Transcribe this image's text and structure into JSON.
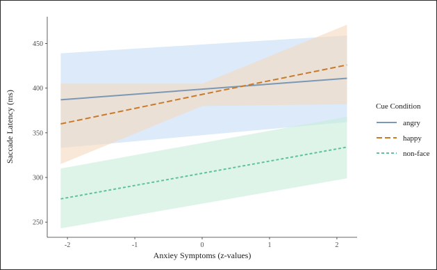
{
  "chart_data": {
    "type": "line",
    "xlabel": "Anxiey Symptoms (z-values)",
    "ylabel": "Saccade Latency (ms)",
    "xlim": [
      -2.3,
      2.3
    ],
    "ylim": [
      233,
      480
    ],
    "x_ticks": [
      -2,
      -1,
      0,
      1,
      2
    ],
    "y_ticks": [
      250,
      300,
      350,
      400,
      450
    ],
    "grid": false,
    "legend": {
      "title": "Cue Condition",
      "placement": "right"
    },
    "series": [
      {
        "name": "angry",
        "color": "#7a98b5",
        "ribbon_color": "#c7dcf7",
        "dash": "solid",
        "x": [
          -2.1,
          2.15
        ],
        "y": [
          387,
          411
        ],
        "lower": [
          333,
          362
        ],
        "upper": [
          439,
          459
        ]
      },
      {
        "name": "happy",
        "color": "#c87a2a",
        "ribbon_color": "#f5d9bc",
        "dash": "long",
        "x": [
          -2.1,
          0.0,
          2.15
        ],
        "y": [
          360,
          393,
          426
        ],
        "lower": [
          315,
          380,
          382
        ],
        "upper": [
          405,
          405,
          471
        ]
      },
      {
        "name": "non-face",
        "color": "#5fc29b",
        "ribbon_color": "#c8ecd9",
        "dash": "short",
        "x": [
          -2.1,
          2.15
        ],
        "y": [
          276,
          334
        ],
        "lower": [
          243,
          299
        ],
        "upper": [
          310,
          368
        ]
      }
    ]
  }
}
